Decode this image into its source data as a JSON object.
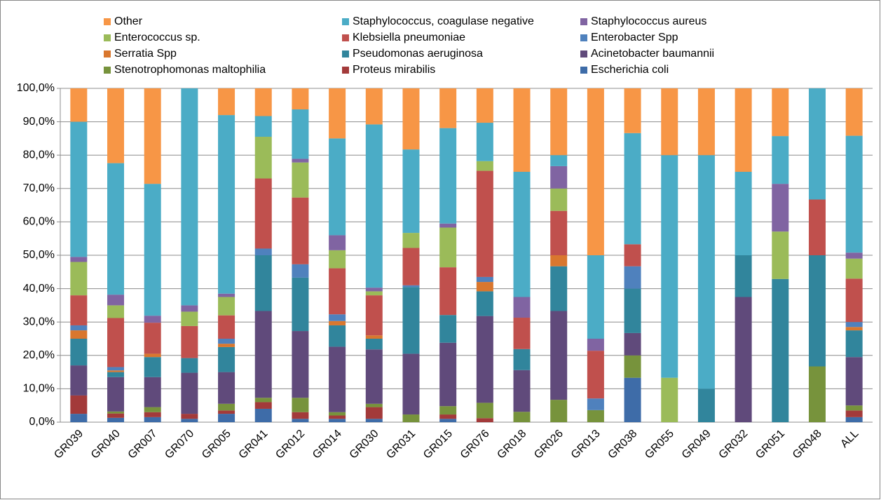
{
  "chart_data": {
    "type": "stacked_bar",
    "categories": [
      "GR039",
      "GR040",
      "GR007",
      "GR070",
      "GR005",
      "GR041",
      "GR012",
      "GR014",
      "GR030",
      "GR031",
      "GR015",
      "GR076",
      "GR018",
      "GR026",
      "GR013",
      "GR038",
      "GR055",
      "GR049",
      "GR032",
      "GR051",
      "GR048",
      "ALL"
    ],
    "series": [
      {
        "name": "Escherichia coli",
        "color": "#3e6ca8",
        "values": [
          2.5,
          1.3,
          1.5,
          1,
          2.5,
          4,
          1,
          1,
          1,
          0,
          1,
          0,
          0,
          0,
          0,
          13.3,
          0,
          0,
          0,
          0,
          0,
          1.5
        ]
      },
      {
        "name": "Proteus mirabilis",
        "color": "#a33a3a",
        "values": [
          5.5,
          1.3,
          1.5,
          1.5,
          1,
          2,
          2,
          1,
          3.5,
          0,
          1.3,
          1.2,
          0,
          0,
          0,
          0,
          0,
          0,
          0,
          0,
          0,
          2
        ]
      },
      {
        "name": "Stenotrophomonas maltophilia",
        "color": "#77933c",
        "values": [
          0,
          0.6,
          1.5,
          0,
          2,
          1.3,
          4.3,
          1,
          1,
          2.3,
          2.5,
          4.6,
          3.1,
          6.7,
          3.6,
          6.7,
          0,
          0,
          0,
          0,
          16.7,
          1.5
        ]
      },
      {
        "name": "Acinetobacter baumannii",
        "color": "#604a7b",
        "values": [
          9,
          10.3,
          9,
          12.3,
          9.5,
          26,
          20,
          19.6,
          16.3,
          18.2,
          19,
          26,
          12.5,
          26.6,
          0,
          6.7,
          0,
          0,
          37.5,
          0,
          0,
          14.5
        ]
      },
      {
        "name": "Pseudomonas aeruginosa",
        "color": "#31859c",
        "values": [
          8,
          1.5,
          6,
          4.4,
          7.5,
          16.7,
          16,
          6.4,
          3.2,
          20,
          8.3,
          7.4,
          6.3,
          13.4,
          0,
          13.3,
          0,
          10,
          12.5,
          42.9,
          33.3,
          8
        ]
      },
      {
        "name": "Serratia Spp",
        "color": "#d9772e",
        "values": [
          2.5,
          0.5,
          1,
          0,
          1,
          0,
          0,
          1.3,
          1,
          0,
          0,
          2.8,
          0,
          3.3,
          0,
          0,
          0,
          0,
          0,
          0,
          0,
          1
        ]
      },
      {
        "name": "Enterobacter Spp",
        "color": "#4f81bd",
        "values": [
          1.5,
          1,
          0,
          0,
          1.5,
          2,
          4,
          2,
          0,
          0.5,
          0,
          1.5,
          0,
          0,
          3.5,
          6.7,
          0,
          0,
          0,
          0,
          0,
          1.5
        ]
      },
      {
        "name": "Klebsiella pneumoniae",
        "color": "#c0504d",
        "values": [
          9,
          14.7,
          9.3,
          9.6,
          7,
          21,
          20,
          13.8,
          12,
          11.2,
          14.3,
          31.8,
          9.4,
          13.3,
          14.3,
          6.6,
          0,
          0,
          0,
          0,
          16.7,
          13
        ]
      },
      {
        "name": "Enterococcus sp.",
        "color": "#9bbb59",
        "values": [
          10,
          3.8,
          0,
          4.3,
          5.5,
          12.5,
          10.5,
          5.4,
          1.2,
          4.5,
          11.9,
          2.9,
          0,
          6.7,
          0,
          0,
          13.3,
          0,
          0,
          14.2,
          0,
          6
        ]
      },
      {
        "name": "Staphylococcus aureus",
        "color": "#8064a2",
        "values": [
          1.5,
          3.2,
          2.1,
          1.9,
          1,
          0,
          1.1,
          4.5,
          1.1,
          0,
          1.2,
          0,
          6.2,
          6.7,
          3.6,
          0,
          0,
          0,
          0,
          14.3,
          0,
          1.8
        ]
      },
      {
        "name": "Staphylococcus, coagulase negative",
        "color": "#4bacc6",
        "values": [
          40.5,
          39.4,
          39.5,
          65,
          53.5,
          6.2,
          14.8,
          29,
          48.9,
          25,
          28.6,
          11.5,
          37.5,
          3.3,
          25,
          33.3,
          66.7,
          70,
          25,
          14.3,
          33.3,
          35
        ]
      },
      {
        "name": "Other",
        "color": "#f79646",
        "values": [
          10,
          22.4,
          28.6,
          0,
          8,
          8.3,
          6.3,
          15,
          10.8,
          18.3,
          11.9,
          10.3,
          25,
          20,
          50,
          13.4,
          20,
          20,
          25,
          14.3,
          0,
          14.2
        ]
      }
    ],
    "ylim": [
      0,
      100
    ],
    "yticks": [
      {
        "value": 0,
        "label": "0,0%"
      },
      {
        "value": 10,
        "label": "10,0%"
      },
      {
        "value": 20,
        "label": "20,0%"
      },
      {
        "value": 30,
        "label": "30,0%"
      },
      {
        "value": 40,
        "label": "40,0%"
      },
      {
        "value": 50,
        "label": "50,0%"
      },
      {
        "value": 60,
        "label": "60,0%"
      },
      {
        "value": 70,
        "label": "70,0%"
      },
      {
        "value": 80,
        "label": "80,0%"
      },
      {
        "value": 90,
        "label": "90,0%"
      },
      {
        "value": 100,
        "label": "100,0%"
      }
    ],
    "grid": true,
    "legend": "top"
  }
}
